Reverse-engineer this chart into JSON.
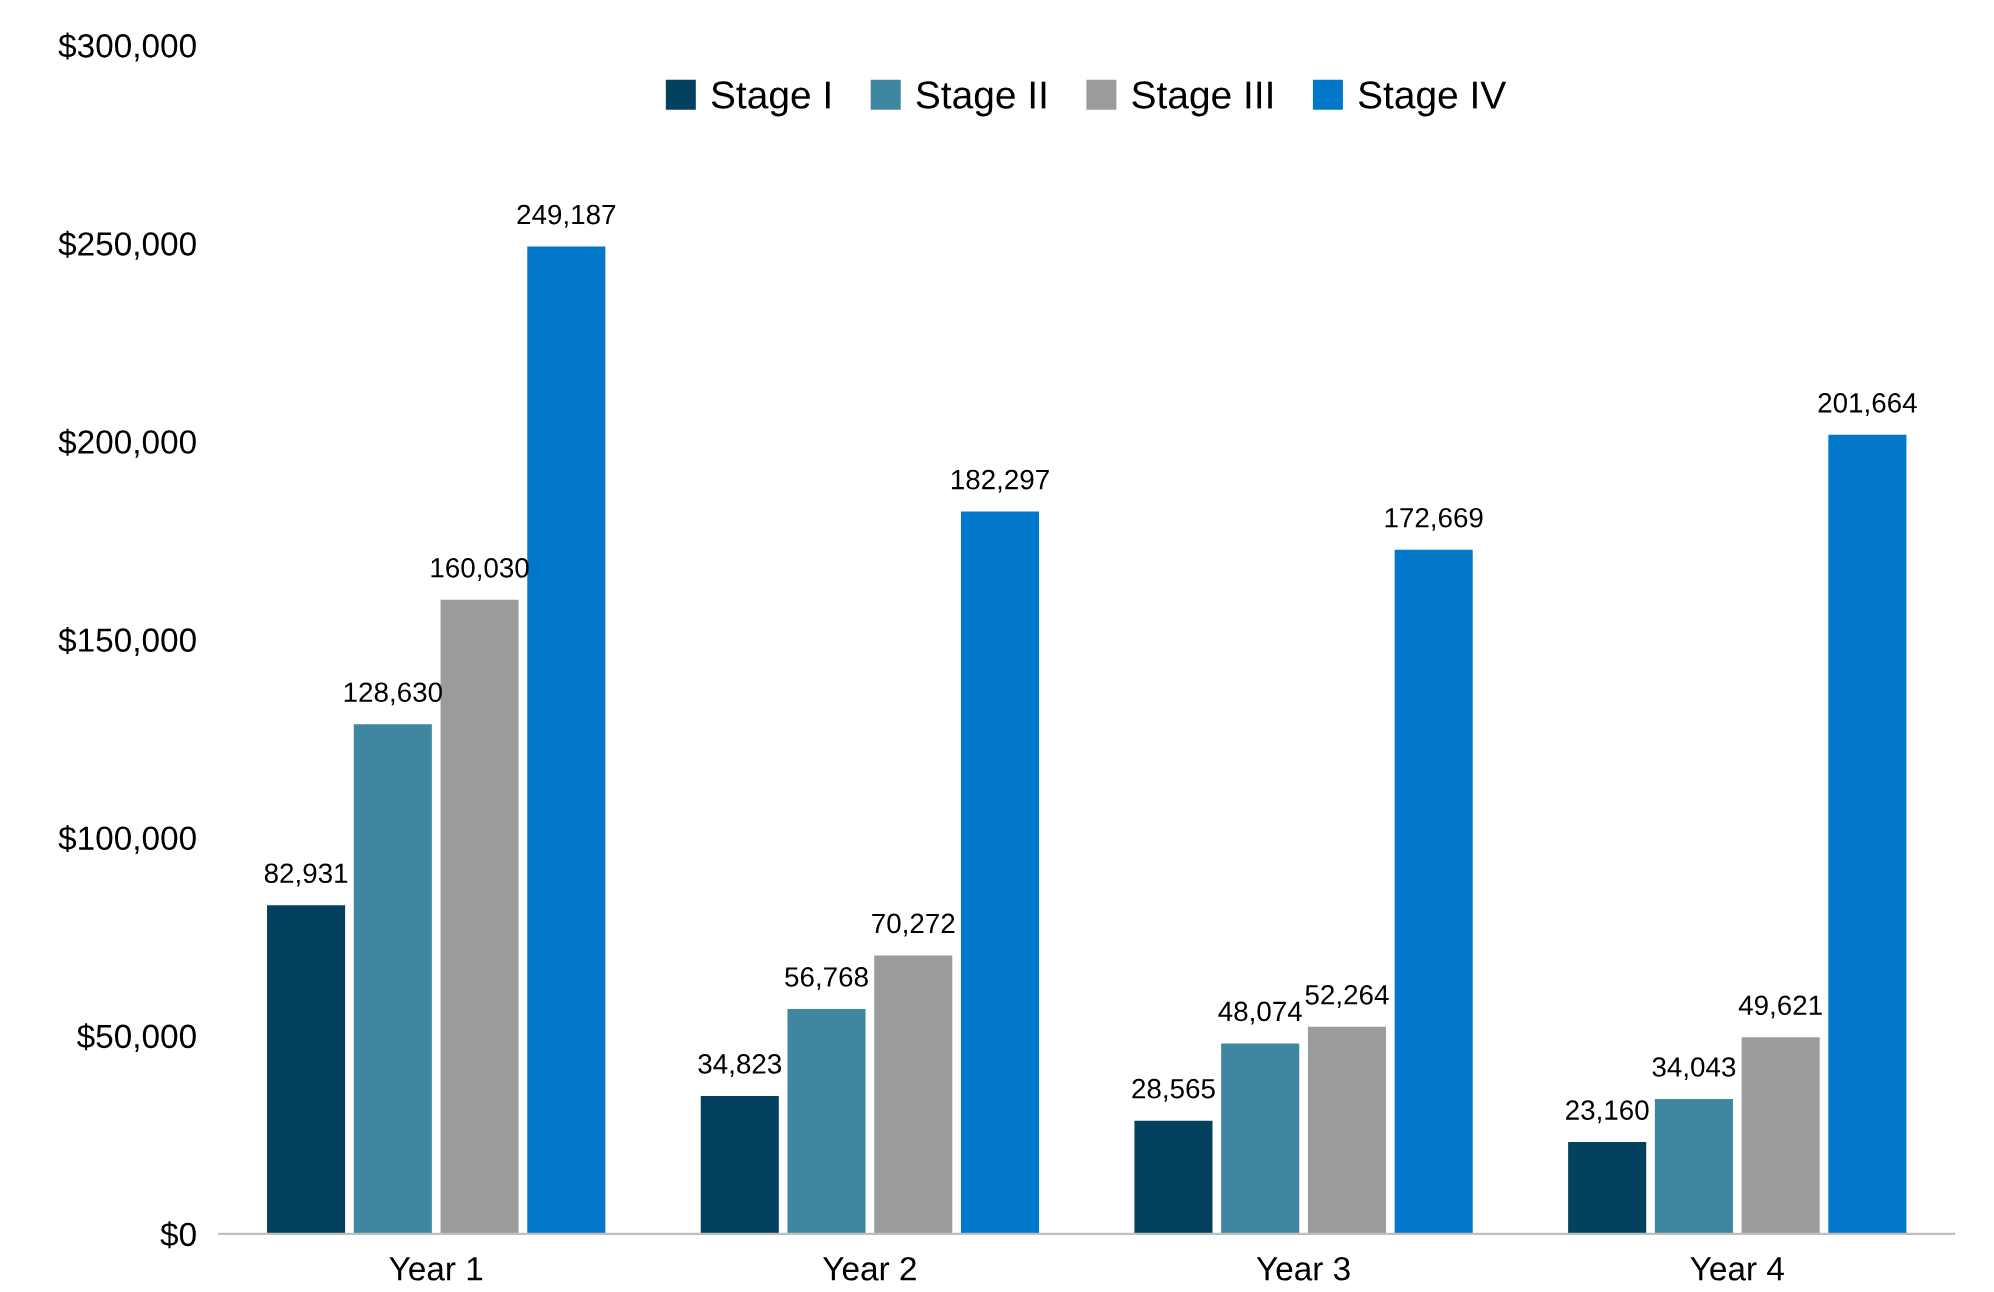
{
  "chart_data": {
    "type": "bar",
    "categories": [
      "Year 1",
      "Year 2",
      "Year 3",
      "Year 4"
    ],
    "series": [
      {
        "name": "Stage I",
        "color": "#04415f",
        "values": [
          82931,
          34823,
          28565,
          23160
        ],
        "value_labels": [
          "82,931",
          "34,823",
          "28,565",
          "23,160"
        ]
      },
      {
        "name": "Stage II",
        "color": "#3f86a0",
        "values": [
          128630,
          56768,
          48074,
          34043
        ],
        "value_labels": [
          "128,630",
          "56,768",
          "48,074",
          "34,043"
        ]
      },
      {
        "name": "Stage III",
        "color": "#9b9b9b",
        "values": [
          160030,
          70272,
          52264,
          49621
        ],
        "value_labels": [
          "160,030",
          "70,272",
          "52,264",
          "49,621"
        ]
      },
      {
        "name": "Stage IV",
        "color": "#0077c8",
        "values": [
          249187,
          182297,
          172669,
          201664
        ],
        "value_labels": [
          "249,187",
          "182,297",
          "172,669",
          "201,664"
        ]
      }
    ],
    "ylim": [
      0,
      300000
    ],
    "yticks": [
      {
        "value": 0,
        "label": "$0"
      },
      {
        "value": 50000,
        "label": "$50,000"
      },
      {
        "value": 100000,
        "label": "$100,000"
      },
      {
        "value": 150000,
        "label": "$150,000"
      },
      {
        "value": 200000,
        "label": "$200,000"
      },
      {
        "value": 250000,
        "label": "$250,000"
      },
      {
        "value": 300000,
        "label": "$300,000"
      }
    ],
    "legend": "top",
    "grid": false
  }
}
